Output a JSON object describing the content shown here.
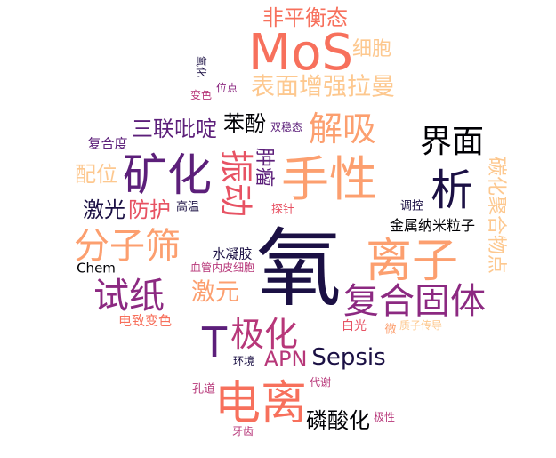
{
  "palette": {
    "dark_purple": "#1b1044",
    "plum": "#5c1f7a",
    "magenta": "#8c2981",
    "rose": "#b73779",
    "coral": "#e75263",
    "salmon": "#f7705c",
    "peach": "#fc9f6f",
    "light_peach": "#fdc88f",
    "black": "#000004"
  },
  "words": [
    {
      "text": "氧",
      "orientation": "horizontal",
      "color": "#1b1044"
    },
    {
      "text": "MoS",
      "orientation": "horizontal",
      "color": "#f7705c"
    },
    {
      "text": "电离",
      "orientation": "horizontal",
      "color": "#f7705c"
    },
    {
      "text": "手性",
      "orientation": "horizontal",
      "color": "#fc9f6f"
    },
    {
      "text": "离子",
      "orientation": "horizontal",
      "color": "#fc9f6f"
    },
    {
      "text": "矿化",
      "orientation": "horizontal",
      "color": "#5c1f7a"
    },
    {
      "text": "析",
      "orientation": "horizontal",
      "color": "#1b1044"
    },
    {
      "text": "复合固体",
      "orientation": "horizontal",
      "color": "#8c2981"
    },
    {
      "text": "T",
      "orientation": "horizontal",
      "color": "#5c1f7a"
    },
    {
      "text": "极化",
      "orientation": "horizontal",
      "color": "#b73779"
    },
    {
      "text": "分子筛",
      "orientation": "horizontal",
      "color": "#fc9f6f"
    },
    {
      "text": "试纸",
      "orientation": "horizontal",
      "color": "#8c2981"
    },
    {
      "text": "界面",
      "orientation": "horizontal",
      "color": "#000004"
    },
    {
      "text": "解吸",
      "orientation": "horizontal",
      "color": "#fc9f6f"
    },
    {
      "text": "振动",
      "orientation": "vertical",
      "color": "#e75263"
    },
    {
      "text": "表面增强拉曼",
      "orientation": "horizontal",
      "color": "#fdc88f"
    },
    {
      "text": "非平衡态",
      "orientation": "horizontal",
      "color": "#f7705c"
    },
    {
      "text": "细胞",
      "orientation": "horizontal",
      "color": "#fdc88f"
    },
    {
      "text": "Sepsis",
      "orientation": "horizontal",
      "color": "#1b1044"
    },
    {
      "text": "APN",
      "orientation": "horizontal",
      "color": "#b73779"
    },
    {
      "text": "磷酸化",
      "orientation": "horizontal",
      "color": "#000004"
    },
    {
      "text": "激元",
      "orientation": "horizontal",
      "color": "#fc9f6f"
    },
    {
      "text": "苯酚",
      "orientation": "horizontal",
      "color": "#000004"
    },
    {
      "text": "三联吡啶",
      "orientation": "horizontal",
      "color": "#5c1f7a"
    },
    {
      "text": "防护",
      "orientation": "horizontal",
      "color": "#e75263"
    },
    {
      "text": "激光",
      "orientation": "horizontal",
      "color": "#1b1044"
    },
    {
      "text": "配位",
      "orientation": "horizontal",
      "color": "#fdc88f"
    },
    {
      "text": "肿瘤",
      "orientation": "vertical",
      "color": "#5c1f7a"
    },
    {
      "text": "碳化聚合物点",
      "orientation": "vertical",
      "color": "#fdc88f"
    },
    {
      "text": "金属纳米粒子",
      "orientation": "horizontal",
      "color": "#000004"
    },
    {
      "text": "水凝胶",
      "orientation": "horizontal",
      "color": "#1b1044"
    },
    {
      "text": "Chem",
      "orientation": "horizontal",
      "color": "#000004"
    },
    {
      "text": "电致变色",
      "orientation": "horizontal",
      "color": "#f7705c"
    },
    {
      "text": "复合度",
      "orientation": "horizontal",
      "color": "#5c1f7a"
    },
    {
      "text": "高温",
      "orientation": "horizontal",
      "color": "#1b1044"
    },
    {
      "text": "探针",
      "orientation": "horizontal",
      "color": "#e75263"
    },
    {
      "text": "调控",
      "orientation": "horizontal",
      "color": "#1b1044"
    },
    {
      "text": "白光",
      "orientation": "horizontal",
      "color": "#e75263"
    },
    {
      "text": "微",
      "orientation": "horizontal",
      "color": "#fc9f6f"
    },
    {
      "text": "质子传导",
      "orientation": "horizontal",
      "color": "#fdc88f"
    },
    {
      "text": "血管内皮细胞",
      "orientation": "horizontal",
      "color": "#b73779"
    },
    {
      "text": "环境",
      "orientation": "horizontal",
      "color": "#1b1044"
    },
    {
      "text": "孔道",
      "orientation": "horizontal",
      "color": "#b73779"
    },
    {
      "text": "代谢",
      "orientation": "horizontal",
      "color": "#b73779"
    },
    {
      "text": "极性",
      "orientation": "horizontal",
      "color": "#b73779"
    },
    {
      "text": "牙齿",
      "orientation": "horizontal",
      "color": "#b73779"
    },
    {
      "text": "位点",
      "orientation": "horizontal",
      "color": "#8c2981"
    },
    {
      "text": "变色",
      "orientation": "horizontal",
      "color": "#b73779"
    },
    {
      "text": "氧化",
      "orientation": "vertical",
      "color": "#1b1044"
    },
    {
      "text": "双稳态",
      "orientation": "horizontal",
      "color": "#5c1f7a"
    }
  ]
}
